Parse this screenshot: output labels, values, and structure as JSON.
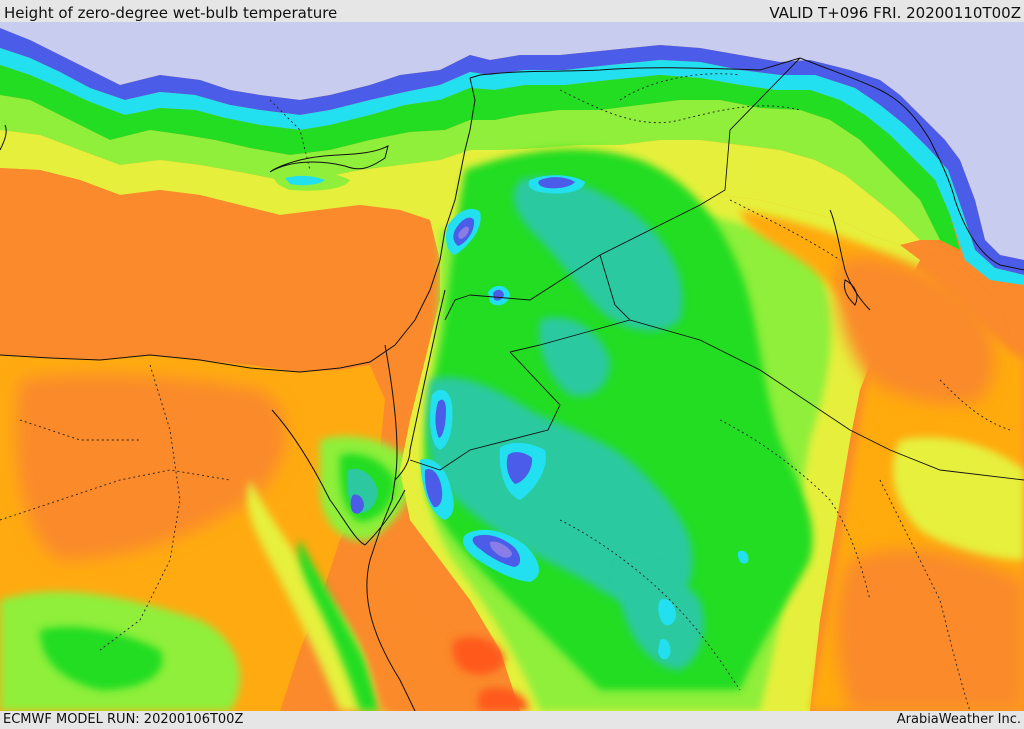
{
  "header": {
    "title": "Height of zero-degree wet-bulb temperature",
    "valid": "VALID T+096 FRI. 20200110T00Z"
  },
  "footer": {
    "model_run": "ECMWF MODEL RUN: 20200106T00Z",
    "provider": "ArabiaWeather Inc."
  },
  "map": {
    "product": "zero-degree wet-bulb height",
    "colors": {
      "sea_north": "#c8cdf0",
      "deep_blue": "#4b5de8",
      "violet": "#8a7ee6",
      "cyan": "#22e0f0",
      "teal": "#2cc9a0",
      "green": "#22dd22",
      "light_green": "#8fef3a",
      "yellow_green": "#e6f03c",
      "orange_yellow": "#ffaa11",
      "orange": "#fa8a2c",
      "red_orange": "#ff5a1e",
      "lines": "#111111"
    }
  }
}
